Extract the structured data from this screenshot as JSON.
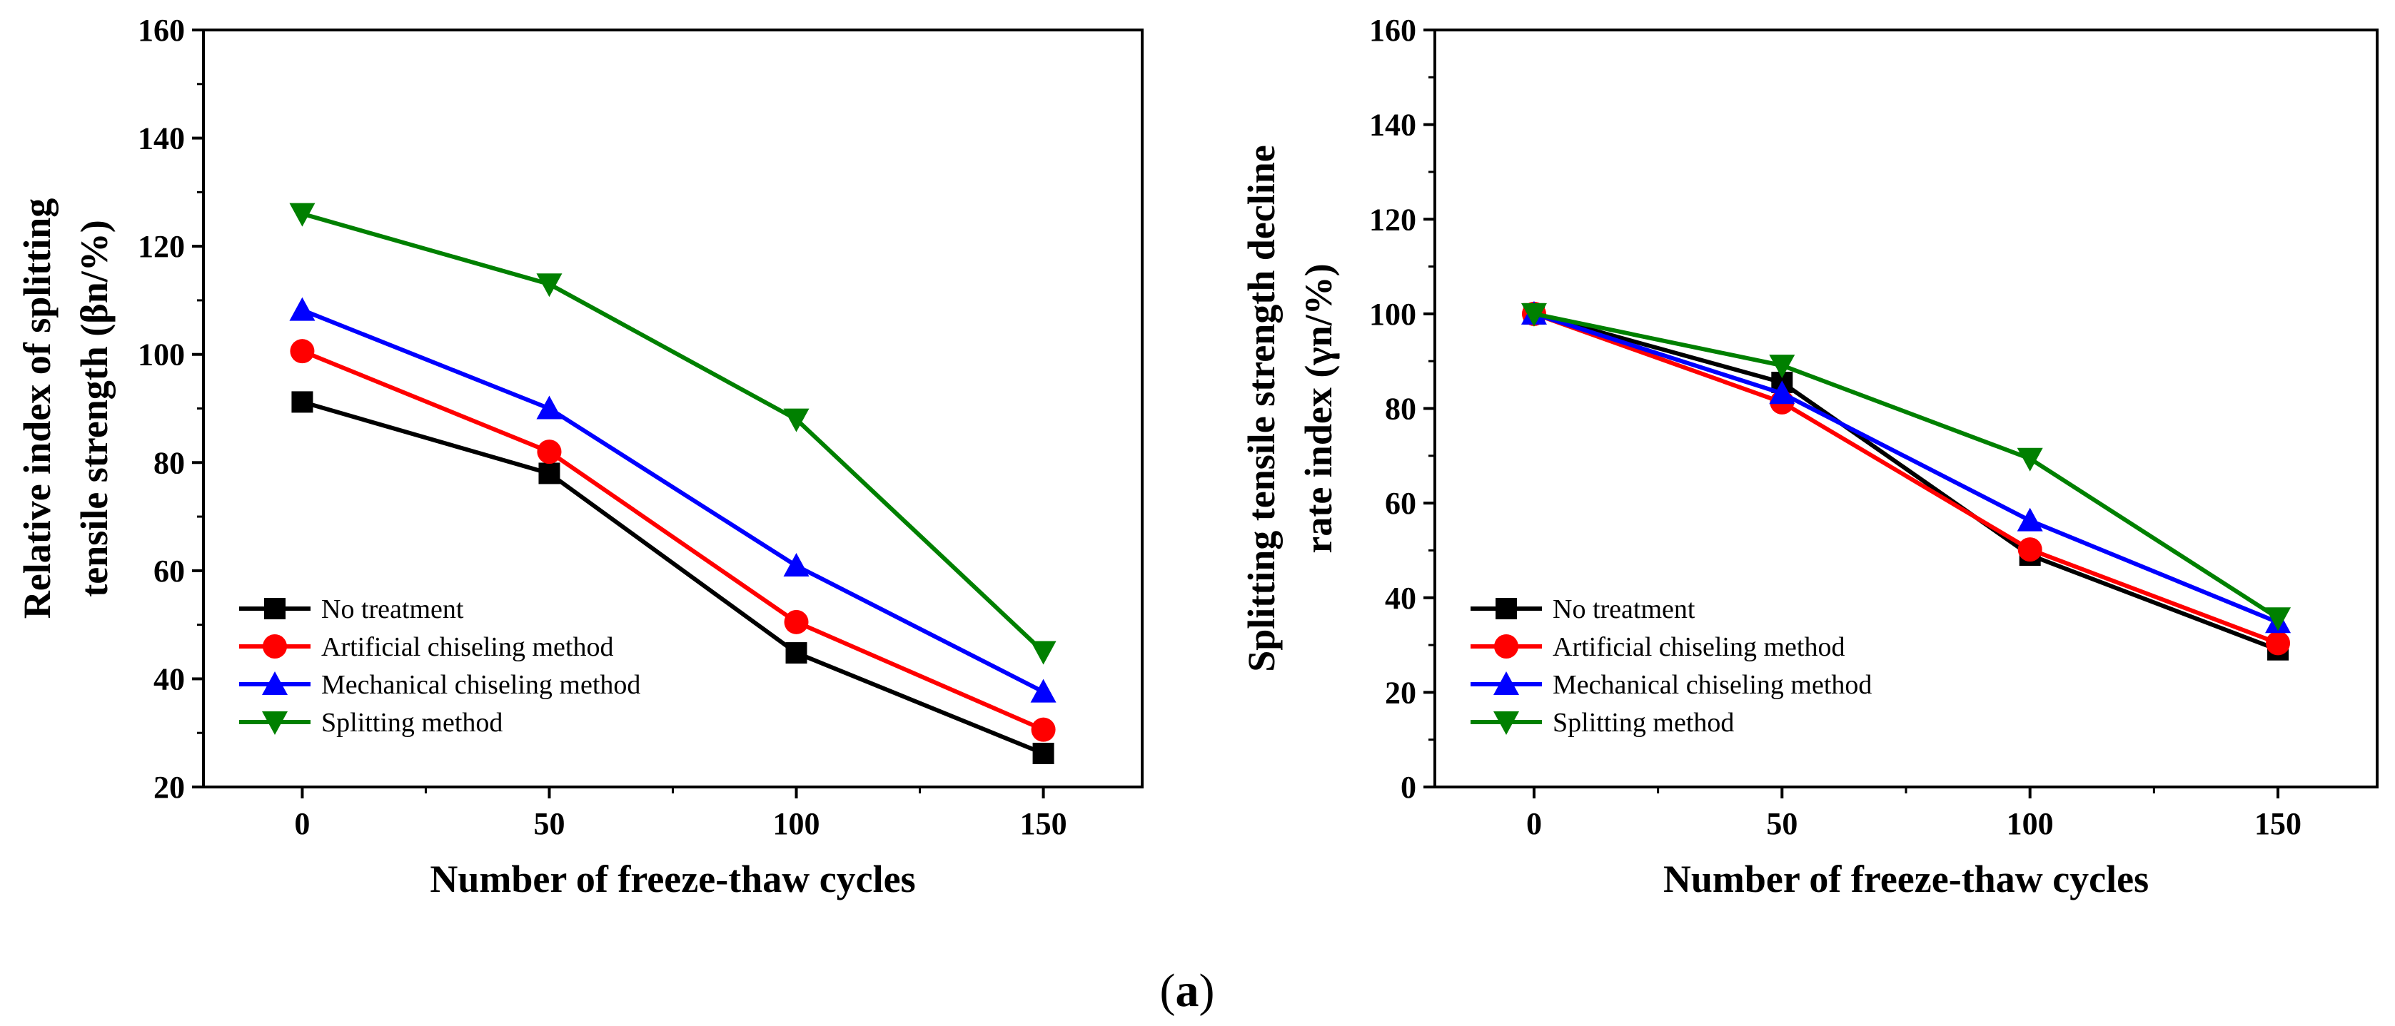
{
  "chart_data": [
    {
      "type": "line",
      "xlabel": "Number of freeze-thaw cycles",
      "ylabel_lines": [
        "Relative index of splitting",
        "tensile strength (βn/%)"
      ],
      "x": [
        0,
        50,
        100,
        150
      ],
      "x_ticks": [
        "0",
        "50",
        "100",
        "150"
      ],
      "xlim": [
        -20,
        170
      ],
      "ylim": [
        20,
        160
      ],
      "y_ticks": [
        "20",
        "40",
        "60",
        "80",
        "100",
        "120",
        "140",
        "160"
      ],
      "legend_position": "lower-left",
      "series": [
        {
          "name": "No treatment",
          "color": "#000000",
          "marker": "square",
          "values": [
            91.2,
            78.0,
            44.8,
            26.2
          ]
        },
        {
          "name": "Artificial chiseling method",
          "color": "#ff0000",
          "marker": "circle",
          "values": [
            100.6,
            82.0,
            50.5,
            30.6
          ]
        },
        {
          "name": "Mechanical chiseling method",
          "color": "#0000ff",
          "marker": "triangle-up",
          "values": [
            108.2,
            90.0,
            60.9,
            37.6
          ]
        },
        {
          "name": "Splitting method",
          "color": "#008000",
          "marker": "triangle-down",
          "values": [
            126.0,
            113.0,
            88.0,
            45.0
          ]
        }
      ]
    },
    {
      "type": "line",
      "xlabel": "Number of freeze-thaw cycles",
      "ylabel_lines": [
        "Splitting tensile strength decline",
        "rate index (γn/%)"
      ],
      "x": [
        0,
        50,
        100,
        150
      ],
      "x_ticks": [
        "0",
        "50",
        "100",
        "150"
      ],
      "xlim": [
        -20,
        170
      ],
      "ylim": [
        0,
        160
      ],
      "y_ticks": [
        "0",
        "20",
        "40",
        "60",
        "80",
        "100",
        "120",
        "140",
        "160"
      ],
      "legend_position": "lower-left",
      "series": [
        {
          "name": "No treatment",
          "color": "#000000",
          "marker": "square",
          "values": [
            100,
            85.5,
            49.0,
            29.0
          ]
        },
        {
          "name": "Artificial chiseling method",
          "color": "#ff0000",
          "marker": "circle",
          "values": [
            100,
            81.3,
            50.2,
            30.4
          ]
        },
        {
          "name": "Mechanical chiseling method",
          "color": "#0000ff",
          "marker": "triangle-up",
          "values": [
            100,
            83.2,
            56.3,
            34.8
          ]
        },
        {
          "name": "Splitting method",
          "color": "#008000",
          "marker": "triangle-down",
          "values": [
            100,
            89.1,
            69.4,
            35.7
          ]
        }
      ]
    }
  ],
  "caption": "(a)"
}
